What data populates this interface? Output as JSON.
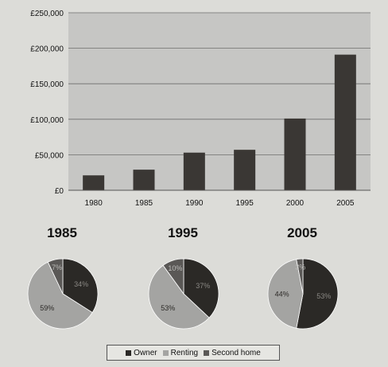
{
  "chart_data": [
    {
      "type": "bar",
      "categories": [
        "1980",
        "1985",
        "1990",
        "1995",
        "2000",
        "2005"
      ],
      "values": [
        21000,
        29000,
        53000,
        57000,
        101000,
        191000
      ],
      "ylim": [
        0,
        250000
      ],
      "yticks": [
        "£0",
        "£50,000",
        "£100,000",
        "£150,000",
        "£200,000",
        "£250,000"
      ],
      "ytick_values": [
        0,
        50000,
        100000,
        150000,
        200000,
        250000
      ],
      "grid": true,
      "bar_color": "#3a3734",
      "plot_background": "#c6c6c4"
    },
    {
      "type": "pie",
      "title": "1985",
      "labels": [
        "Owner",
        "Renting",
        "Second home"
      ],
      "values": [
        34,
        59,
        7
      ],
      "value_labels": [
        "34%",
        "59%",
        "7%"
      ]
    },
    {
      "type": "pie",
      "title": "1995",
      "labels": [
        "Owner",
        "Renting",
        "Second home"
      ],
      "values": [
        37,
        53,
        10
      ],
      "value_labels": [
        "37%",
        "53%",
        "10%"
      ]
    },
    {
      "type": "pie",
      "title": "2005",
      "labels": [
        "Owner",
        "Renting",
        "Second home"
      ],
      "values": [
        53,
        44,
        3
      ],
      "value_labels": [
        "53%",
        "44%",
        "3%"
      ]
    }
  ],
  "legend": {
    "placement": "bottom",
    "items": [
      {
        "label": "Owner",
        "color": "#2b2926"
      },
      {
        "label": "Renting",
        "color": "#a4a4a2"
      },
      {
        "label": "Second home",
        "color": "#5a5856"
      }
    ]
  }
}
